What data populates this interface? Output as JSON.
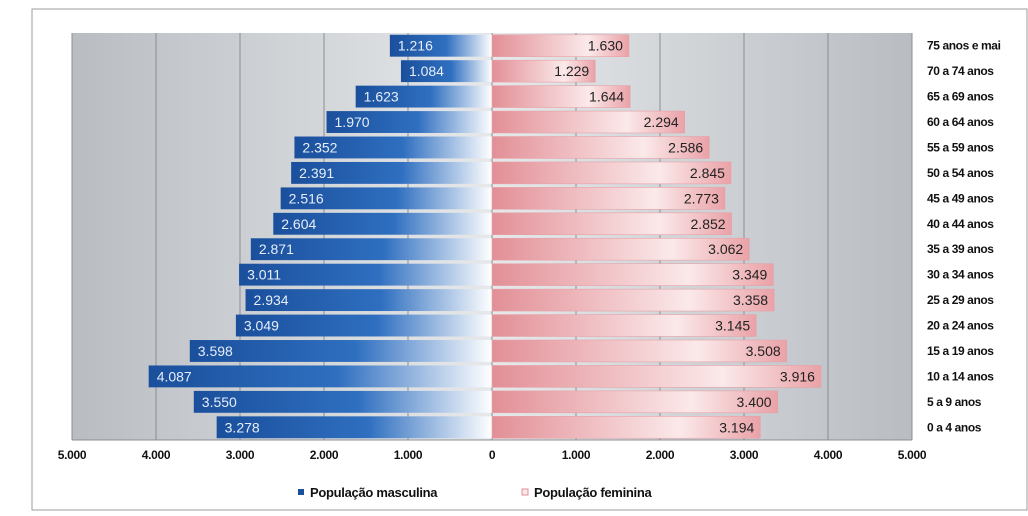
{
  "chart_data": {
    "type": "bar",
    "orientation": "horizontal",
    "layout": "population-pyramid",
    "categories": [
      "0 a 4 anos",
      "5 a 9 anos",
      "10 a 14 anos",
      "15 a 19 anos",
      "20 a 24 anos",
      "25 a 29 anos",
      "30 a 34 anos",
      "35 a 39 anos",
      "40 a 44 anos",
      "45 a 49 anos",
      "50 a 54 anos",
      "55 a 59 anos",
      "60 a 64 anos",
      "65 a 69 anos",
      "70 a 74 anos",
      "75 anos e mai"
    ],
    "series": [
      {
        "name": "População masculina",
        "side": "left",
        "values": [
          3278,
          3550,
          4087,
          3598,
          3049,
          2934,
          3011,
          2871,
          2604,
          2516,
          2391,
          2352,
          1970,
          1623,
          1084,
          1216
        ],
        "labels": [
          "3.278",
          "3.550",
          "4.087",
          "3.598",
          "3.049",
          "2.934",
          "3.011",
          "2.871",
          "2.604",
          "2.516",
          "2.391",
          "2.352",
          "1.970",
          "1.623",
          "1.084",
          "1.216"
        ]
      },
      {
        "name": "População feminina",
        "side": "right",
        "values": [
          3194,
          3400,
          3916,
          3508,
          3145,
          3358,
          3349,
          3062,
          2852,
          2773,
          2845,
          2586,
          2294,
          1644,
          1229,
          1630
        ],
        "labels": [
          "3.194",
          "3.400",
          "3.916",
          "3.508",
          "3.145",
          "3.358",
          "3.349",
          "3.062",
          "2.852",
          "2.773",
          "2.845",
          "2.586",
          "2.294",
          "1.644",
          "1.229",
          "1.630"
        ]
      }
    ],
    "x_ticks": [
      {
        "value": -5000,
        "label": "5.000"
      },
      {
        "value": -4000,
        "label": "4.000"
      },
      {
        "value": -3000,
        "label": "3.000"
      },
      {
        "value": -2000,
        "label": "2.000"
      },
      {
        "value": -1000,
        "label": "1.000"
      },
      {
        "value": 0,
        "label": "0"
      },
      {
        "value": 1000,
        "label": "1.000"
      },
      {
        "value": 2000,
        "label": "2.000"
      },
      {
        "value": 3000,
        "label": "3.000"
      },
      {
        "value": 4000,
        "label": "4.000"
      },
      {
        "value": 5000,
        "label": "5.000"
      }
    ],
    "xlim": [
      -5000,
      5000
    ],
    "grid": true,
    "legend_position": "bottom",
    "colors": {
      "male_dark": "#1a4f9c",
      "male_light": "#ffffff",
      "female_dark": "#e28f96",
      "female_light": "#fbe9ea",
      "plot_background": "#c9cdd2"
    }
  }
}
